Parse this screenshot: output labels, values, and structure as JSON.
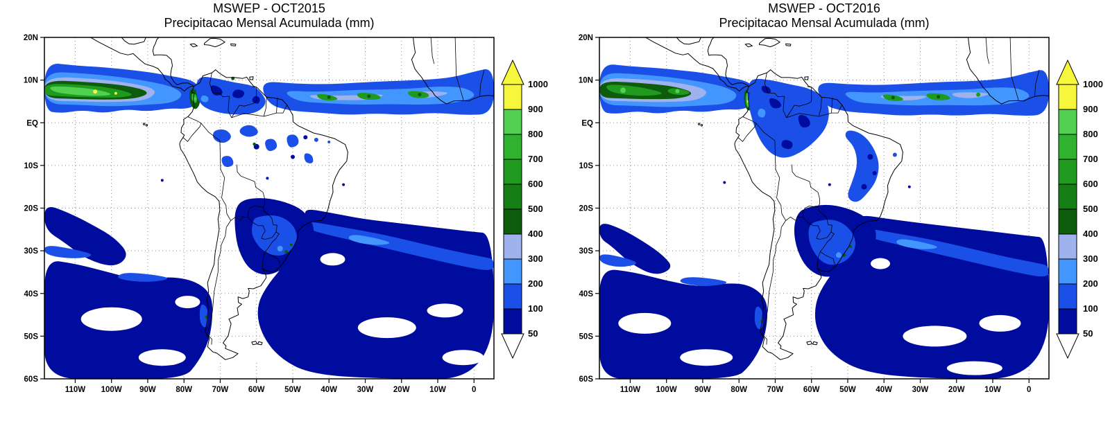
{
  "panels": [
    {
      "title": "MSWEP - OCT2015",
      "subtitle": "Precipitacao Mensal Acumulada (mm)"
    },
    {
      "title": "MSWEP - OCT2016",
      "subtitle": "Precipitacao Mensal Acumulada (mm)"
    }
  ],
  "axes": {
    "lat_labels": [
      "20N",
      "10N",
      "EQ",
      "10S",
      "20S",
      "30S",
      "40S",
      "50S",
      "60S"
    ],
    "lat_values": [
      20,
      10,
      0,
      -10,
      -20,
      -30,
      -40,
      -50,
      -60
    ],
    "lon_labels": [
      "110W",
      "100W",
      "90W",
      "80W",
      "70W",
      "60W",
      "50W",
      "40W",
      "30W",
      "20W",
      "10W",
      "0"
    ],
    "lon_values": [
      -110,
      -100,
      -90,
      -80,
      -70,
      -60,
      -50,
      -40,
      -30,
      -20,
      -10,
      0
    ]
  },
  "colorbar": {
    "labels_top_to_bottom": [
      "1000",
      "900",
      "800",
      "700",
      "600",
      "500",
      "400",
      "300",
      "200",
      "100",
      "50"
    ],
    "segment_colors_top_to_bottom": [
      "#f6f63e",
      "#52d052",
      "#2fb32f",
      "#1f9a1f",
      "#157f15",
      "#0c5c0c",
      "#9fb2ee",
      "#4496ff",
      "#1b50e8",
      "#000c9e"
    ],
    "over_arrow_color": "#f6f63e",
    "under_arrow_color": "#ffffff"
  },
  "palette": {
    "navy": "#000c9e",
    "blue": "#1b50e8",
    "sky": "#4496ff",
    "peri": "#9fb2ee",
    "g1": "#0c5c0c",
    "g2": "#157f15",
    "g3": "#1f9a1f",
    "g4": "#2fb32f",
    "g5": "#52d052",
    "yellow": "#f6f63e",
    "white": "#ffffff"
  }
}
